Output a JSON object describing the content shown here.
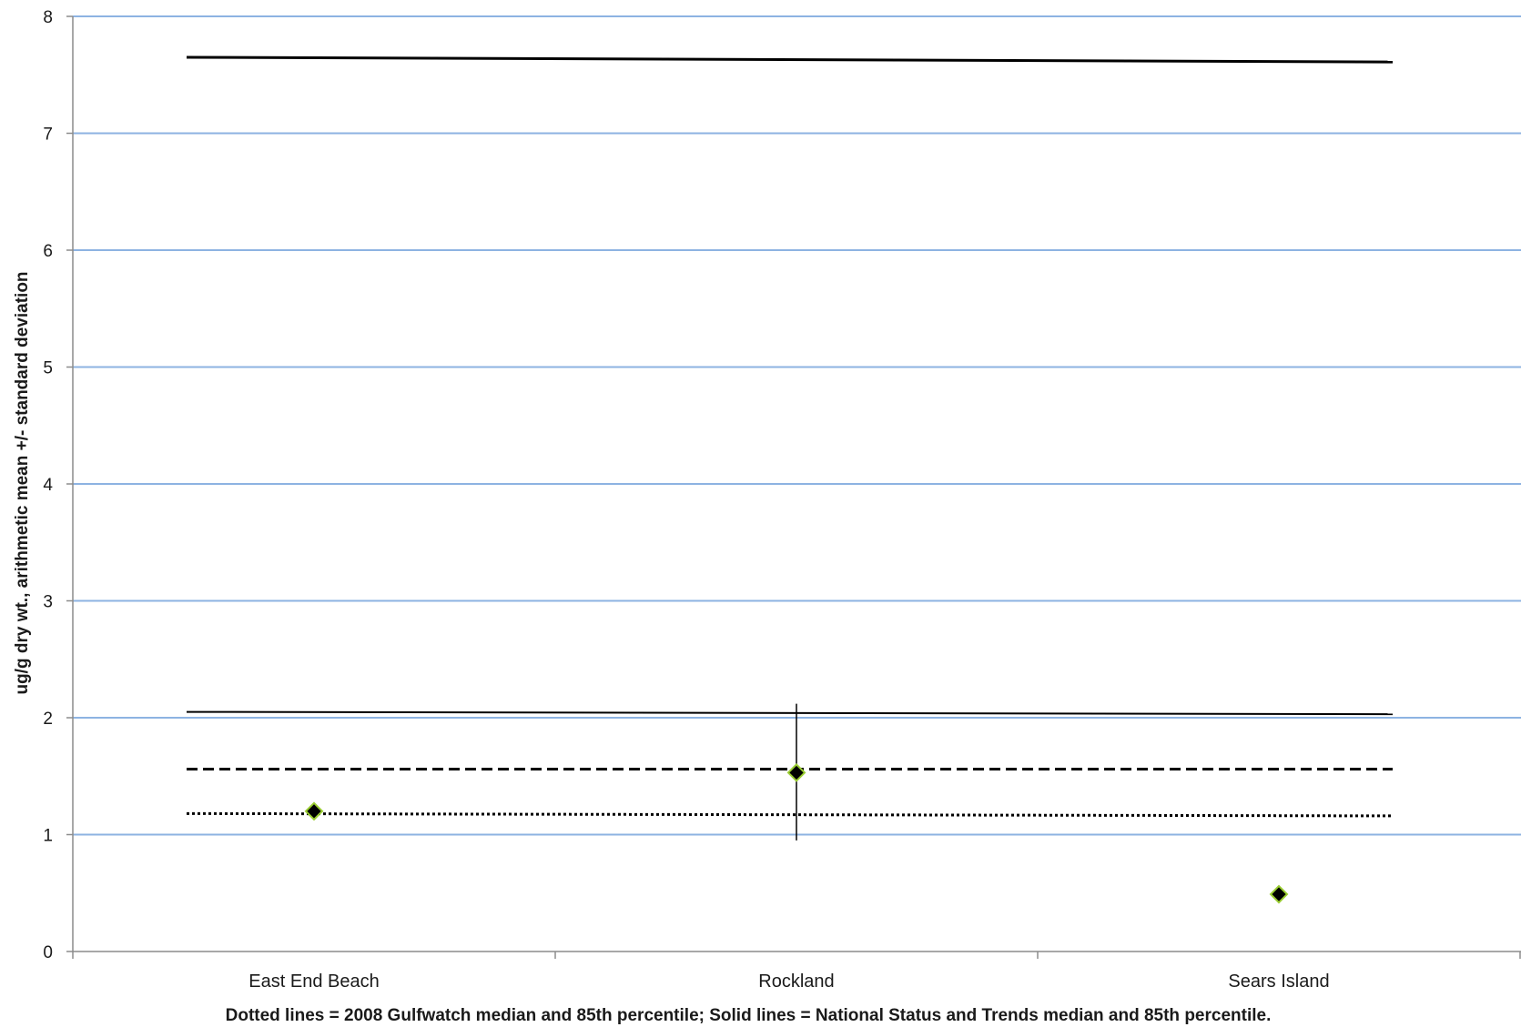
{
  "chart_data": {
    "type": "scatter",
    "categories": [
      "East End Beach",
      "Rockland",
      "Sears Island"
    ],
    "series": [
      {
        "values": [
          1.2,
          1.53,
          0.49
        ],
        "error_low": [
          null,
          0.95,
          null
        ],
        "error_high": [
          null,
          2.12,
          null
        ],
        "marker": "diamond",
        "color": "#000000",
        "marker_edge_color": "#9acd32"
      }
    ],
    "reference_lines": [
      {
        "style": "solid",
        "width": "thick",
        "start": 7.65,
        "end": 7.61
      },
      {
        "style": "solid",
        "width": "thin",
        "start": 2.05,
        "end": 2.03
      },
      {
        "style": "dashed",
        "width": "thick",
        "start": 1.56,
        "end": 1.56
      },
      {
        "style": "dotted",
        "width": "thick",
        "start": 1.18,
        "end": 1.16
      }
    ],
    "ylabel": "ug/g dry wt., arithmetic mean +/- standard deviation",
    "xlabel": "Dotted lines = 2008 Gulfwatch median and 85th percentile; Solid lines = National Status and Trends median and 85th percentile.",
    "ylim": [
      0,
      8
    ],
    "yticks": [
      "0",
      "1",
      "2",
      "3",
      "4",
      "5",
      "6",
      "7",
      "8"
    ],
    "grid": true,
    "grid_color": "#8db3e2",
    "axis_color": "#8c8c8c",
    "legend": "none"
  }
}
